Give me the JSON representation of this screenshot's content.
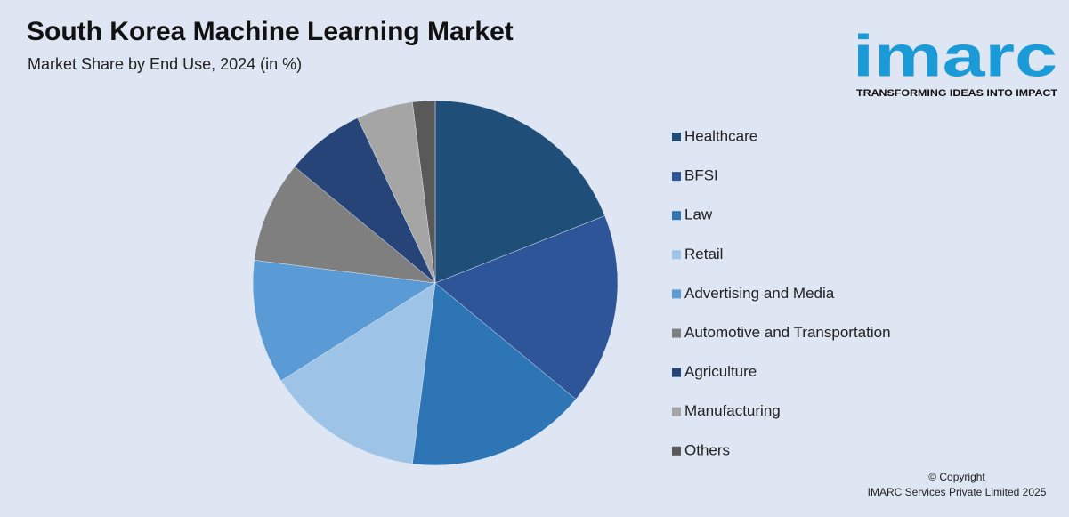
{
  "chart_data": {
    "type": "pie",
    "title": "South Korea Machine Learning Market",
    "subtitle": "Market Share by End Use, 2024 (in %)",
    "categories": [
      "Healthcare",
      "BFSI",
      "Law",
      "Retail",
      "Advertising and Media",
      "Automotive and Transportation",
      "Agriculture",
      "Manufacturing",
      "Others"
    ],
    "values": [
      19,
      17,
      16,
      14,
      11,
      9,
      7,
      5,
      2
    ],
    "colors": [
      "#1f4e79",
      "#2e5597",
      "#2e75b6",
      "#9dc3e6",
      "#5b9bd5",
      "#7f7f7f",
      "#264478",
      "#a5a5a5",
      "#595959"
    ],
    "legend": "right"
  },
  "logo": {
    "name": "imarc",
    "tagline": "TRANSFORMING IDEAS INTO IMPACT"
  },
  "footer": {
    "copyright": "© Copyright",
    "owner": "IMARC Services Private Limited 2025"
  }
}
